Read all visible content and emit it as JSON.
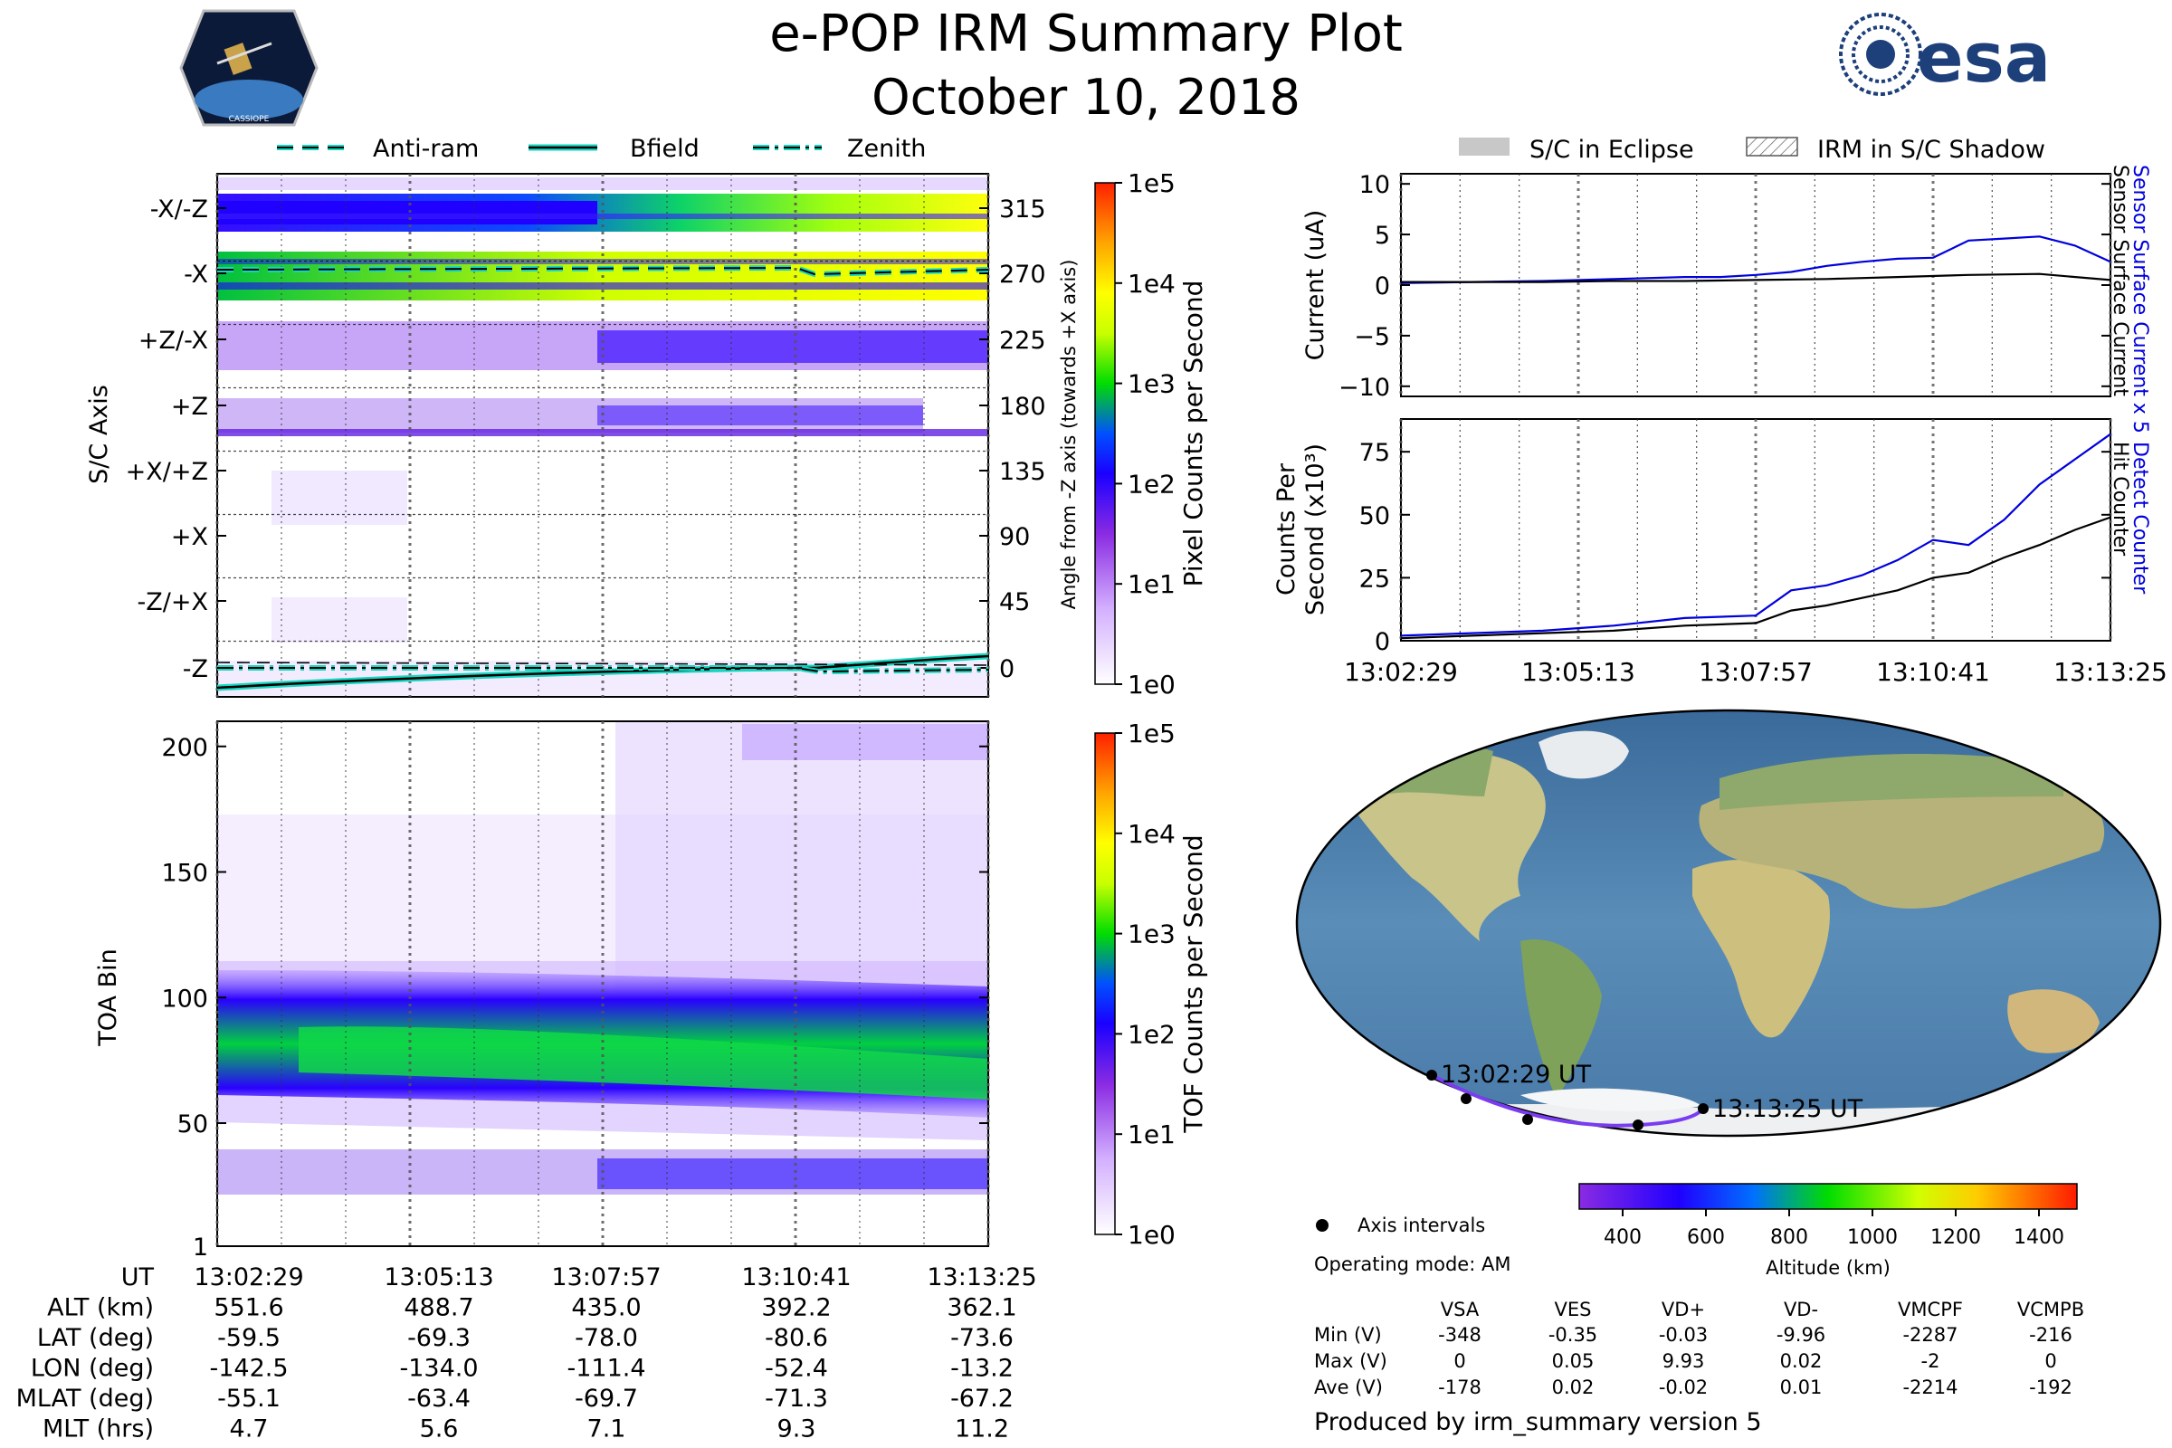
{
  "header": {
    "title": "e-POP IRM Summary Plot",
    "date": "October 10, 2018",
    "esa_logo": "esa",
    "mission_badge": "CASSIOPE"
  },
  "colors": {
    "gradient": [
      "#ffffff",
      "#d9b8ff",
      "#8a2be2",
      "#1a00ff",
      "#0044ff",
      "#00e000",
      "#c8ff00",
      "#ffff00",
      "#ffa500",
      "#ff2000"
    ],
    "teal": "#17d5c0",
    "trace_blue": "#0000dd",
    "track": "#7a3cf0"
  },
  "legend_left": [
    "Anti-ram",
    "Bfield",
    "Zenith"
  ],
  "legend_right": [
    "S/C in Eclipse",
    "IRM in S/C Shadow"
  ],
  "time_ticks": [
    "13:02:29",
    "13:05:13",
    "13:07:57",
    "13:10:41",
    "13:13:25"
  ],
  "chart_data": [
    {
      "type": "heatmap",
      "name": "angle_spectrogram",
      "ylabel": "S/C Axis",
      "ylabel_right": "Angle from -Z axis (towards +X axis)",
      "axis_labels": [
        "-X/-Z",
        "-X",
        "+Z/-X",
        "+Z",
        "+X/+Z",
        "+X",
        "-Z/+X",
        "-Z"
      ],
      "angle_ticks": [
        "315",
        "270",
        "225",
        "180",
        "135",
        "90",
        "45",
        "0"
      ],
      "cbar_label": "Pixel Counts per Second",
      "cbar_ticks": [
        "1e5",
        "1e4",
        "1e3",
        "1e2",
        "1e1",
        "1e0"
      ]
    },
    {
      "type": "heatmap",
      "name": "toa_spectrogram",
      "ylabel": "TOA Bin",
      "y_ticks": [
        "200",
        "150",
        "100",
        "50",
        "1"
      ],
      "ylim": [
        1,
        210
      ],
      "cbar_label": "TOF Counts per Second",
      "cbar_ticks": [
        "1e5",
        "1e4",
        "1e3",
        "1e2",
        "1e1",
        "1e0"
      ]
    },
    {
      "type": "line",
      "name": "currents",
      "ylabel": "Current (uA)",
      "y_ticks": [
        "10",
        "5",
        "0",
        "−5",
        "−10"
      ],
      "ylim": [
        -11,
        11
      ],
      "right_labels": [
        "Sensor Surface Current x 5",
        "Sensor Surface Current"
      ],
      "series": [
        {
          "name": "Sensor Surface Current x 5",
          "x": [
            0,
            0.1,
            0.2,
            0.3,
            0.4,
            0.45,
            0.5,
            0.55,
            0.6,
            0.65,
            0.7,
            0.75,
            0.8,
            0.85,
            0.9,
            0.95,
            1.0
          ],
          "values": [
            0.2,
            0.3,
            0.4,
            0.6,
            0.8,
            0.8,
            1.0,
            1.3,
            1.9,
            2.3,
            2.6,
            2.7,
            4.4,
            4.6,
            4.8,
            3.9,
            2.3
          ]
        },
        {
          "name": "Sensor Surface Current",
          "x": [
            0,
            0.1,
            0.2,
            0.3,
            0.4,
            0.5,
            0.6,
            0.7,
            0.8,
            0.9,
            1.0
          ],
          "values": [
            0.3,
            0.3,
            0.3,
            0.4,
            0.4,
            0.5,
            0.6,
            0.8,
            1.0,
            1.1,
            0.5
          ]
        }
      ]
    },
    {
      "type": "line",
      "name": "counts",
      "ylabel": "Counts Per Second (x10³)",
      "y_ticks": [
        "75",
        "50",
        "25",
        "0"
      ],
      "ylim": [
        0,
        88
      ],
      "right_labels": [
        "Detect Counter",
        "Hit Counter"
      ],
      "series": [
        {
          "name": "Detect Counter",
          "x": [
            0,
            0.1,
            0.2,
            0.3,
            0.4,
            0.5,
            0.55,
            0.6,
            0.65,
            0.7,
            0.75,
            0.8,
            0.85,
            0.9,
            0.95,
            1.0
          ],
          "values": [
            2,
            3,
            4,
            6,
            9,
            10,
            20,
            22,
            26,
            32,
            40,
            38,
            48,
            62,
            72,
            82
          ]
        },
        {
          "name": "Hit Counter",
          "x": [
            0,
            0.1,
            0.2,
            0.3,
            0.4,
            0.5,
            0.55,
            0.6,
            0.65,
            0.7,
            0.75,
            0.8,
            0.85,
            0.9,
            0.95,
            1.0
          ],
          "values": [
            1,
            2,
            3,
            4,
            6,
            7,
            12,
            14,
            17,
            20,
            25,
            27,
            33,
            38,
            44,
            49
          ]
        }
      ]
    }
  ],
  "map": {
    "start_label": "13:02:29 UT",
    "end_label": "13:13:25 UT",
    "legend_marker": "Axis intervals",
    "operating_mode": "Operating mode: AM",
    "cbar_label": "Altitude (km)",
    "cbar_ticks": [
      "400",
      "600",
      "800",
      "1000",
      "1200",
      "1400"
    ]
  },
  "ephemeris": {
    "row_labels": [
      "UT",
      "ALT (km)",
      "LAT (deg)",
      "LON (deg)",
      "MLAT (deg)",
      "MLT (hrs)"
    ],
    "rows": [
      [
        "13:02:29",
        "13:05:13",
        "13:07:57",
        "13:10:41",
        "13:13:25"
      ],
      [
        "551.6",
        "488.7",
        "435.0",
        "392.2",
        "362.1"
      ],
      [
        "-59.5",
        "-69.3",
        "-78.0",
        "-80.6",
        "-73.6"
      ],
      [
        "-142.5",
        "-134.0",
        "-111.4",
        "-52.4",
        "-13.2"
      ],
      [
        "-55.1",
        "-63.4",
        "-69.7",
        "-71.3",
        "-67.2"
      ],
      [
        "4.7",
        "5.6",
        "7.1",
        "9.3",
        "11.2"
      ]
    ]
  },
  "voltages": {
    "headers": [
      "VSA",
      "VES",
      "VD+",
      "VD-",
      "VMCPF",
      "VCMPB"
    ],
    "rows": [
      {
        "label": "Min (V)",
        "values": [
          "-348",
          "-0.35",
          "-0.03",
          "-9.96",
          "-2287",
          "-216"
        ]
      },
      {
        "label": "Max (V)",
        "values": [
          "0",
          "0.05",
          "9.93",
          "0.02",
          "-2",
          "0"
        ]
      },
      {
        "label": "Ave (V)",
        "values": [
          "-178",
          "0.02",
          "-0.02",
          "0.01",
          "-2214",
          "-192"
        ]
      }
    ]
  },
  "footer": "Produced by irm_summary version 5"
}
